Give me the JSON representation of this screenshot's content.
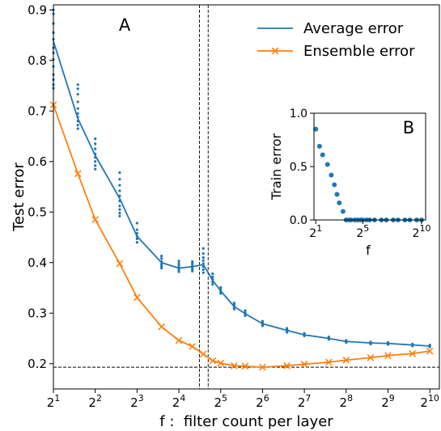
{
  "chart_data": [
    {
      "panel": "A",
      "type": "line",
      "xlabel": "f :  filter count per layer",
      "ylabel": "Test error",
      "x_scale": "log2",
      "xlim": [
        2,
        1200
      ],
      "ylim": [
        0.15,
        0.91
      ],
      "x_ticks": [
        {
          "value": 2,
          "base": "2",
          "exp": "1"
        },
        {
          "value": 4,
          "base": "2",
          "exp": "2"
        },
        {
          "value": 8,
          "base": "2",
          "exp": "3"
        },
        {
          "value": 16,
          "base": "2",
          "exp": "4"
        },
        {
          "value": 32,
          "base": "2",
          "exp": "5"
        },
        {
          "value": 64,
          "base": "2",
          "exp": "6"
        },
        {
          "value": 128,
          "base": "2",
          "exp": "7"
        },
        {
          "value": 256,
          "base": "2",
          "exp": "8"
        },
        {
          "value": 512,
          "base": "2",
          "exp": "9"
        },
        {
          "value": 1024,
          "base": "2",
          "exp": "10"
        }
      ],
      "y_ticks": [
        "0.2",
        "0.3",
        "0.4",
        "0.5",
        "0.6",
        "0.7",
        "0.8",
        "0.9"
      ],
      "reference_lines": {
        "vertical_x": [
          22.5,
          26
        ],
        "horizontal_y": [
          0.193
        ]
      },
      "x": [
        2,
        3,
        4,
        6,
        8,
        12,
        16,
        20,
        24,
        28,
        32,
        40,
        48,
        64,
        96,
        128,
        192,
        256,
        384,
        512,
        768,
        1024
      ],
      "series": [
        {
          "name": "Average error",
          "color": "#1f77b4",
          "marker": "none",
          "values": [
            0.838,
            0.685,
            0.612,
            0.527,
            0.452,
            0.4,
            0.389,
            0.392,
            0.396,
            0.365,
            0.344,
            0.313,
            0.299,
            0.279,
            0.266,
            0.257,
            0.25,
            0.244,
            0.241,
            0.24,
            0.237,
            0.235
          ]
        },
        {
          "name": "Ensemble error",
          "color": "#ff7f0e",
          "marker": "x",
          "values": [
            0.712,
            0.576,
            0.485,
            0.398,
            0.331,
            0.273,
            0.246,
            0.234,
            0.219,
            0.206,
            0.201,
            0.196,
            0.195,
            0.193,
            0.196,
            0.199,
            0.203,
            0.207,
            0.212,
            0.216,
            0.22,
            0.225
          ]
        }
      ],
      "individual_runs": {
        "color": "#1f77b4",
        "groups": [
          {
            "x": 2,
            "values": [
              0.9,
              0.892,
              0.873,
              0.855,
              0.842,
              0.825,
              0.815,
              0.802,
              0.788,
              0.772,
              0.762,
              0.752,
              0.745
            ]
          },
          {
            "x": 3,
            "values": [
              0.752,
              0.744,
              0.733,
              0.718,
              0.705,
              0.695,
              0.688,
              0.68,
              0.672,
              0.665
            ]
          },
          {
            "x": 4,
            "values": [
              0.645,
              0.635,
              0.625,
              0.615,
              0.608,
              0.6,
              0.592,
              0.585
            ]
          },
          {
            "x": 6,
            "values": [
              0.578,
              0.565,
              0.553,
              0.542,
              0.532,
              0.522,
              0.512,
              0.505,
              0.498,
              0.492
            ]
          },
          {
            "x": 8,
            "values": [
              0.478,
              0.465,
              0.458,
              0.452,
              0.447,
              0.44
            ]
          },
          {
            "x": 12,
            "values": [
              0.413,
              0.408,
              0.402,
              0.397,
              0.393,
              0.389
            ]
          },
          {
            "x": 16,
            "values": [
              0.403,
              0.398,
              0.394,
              0.39,
              0.386,
              0.382
            ]
          },
          {
            "x": 20,
            "values": [
              0.402,
              0.398,
              0.394,
              0.39,
              0.386,
              0.383
            ]
          },
          {
            "x": 24,
            "values": [
              0.428,
              0.418,
              0.41,
              0.404,
              0.398,
              0.392,
              0.386,
              0.38
            ]
          },
          {
            "x": 28,
            "values": [
              0.378,
              0.372,
              0.367,
              0.362,
              0.357
            ]
          },
          {
            "x": 32,
            "values": [
              0.351,
              0.347,
              0.343,
              0.339
            ]
          },
          {
            "x": 40,
            "values": [
              0.32,
              0.316,
              0.312,
              0.308
            ]
          },
          {
            "x": 48,
            "values": [
              0.305,
              0.301,
              0.298,
              0.295
            ]
          },
          {
            "x": 64,
            "values": [
              0.284,
              0.281,
              0.278,
              0.275
            ]
          },
          {
            "x": 96,
            "values": [
              0.27,
              0.267,
              0.264,
              0.262
            ]
          },
          {
            "x": 128,
            "values": [
              0.26,
              0.257,
              0.255
            ]
          },
          {
            "x": 192,
            "values": [
              0.253,
              0.25,
              0.248
            ]
          },
          {
            "x": 256,
            "values": [
              0.246,
              0.244,
              0.242
            ]
          },
          {
            "x": 384,
            "values": [
              0.243,
              0.241,
              0.239
            ]
          },
          {
            "x": 512,
            "values": [
              0.242,
              0.24,
              0.238
            ]
          },
          {
            "x": 768,
            "values": [
              0.239,
              0.237,
              0.235
            ]
          },
          {
            "x": 1024,
            "values": [
              0.237,
              0.235,
              0.233
            ]
          }
        ]
      },
      "legend": {
        "position": "top-right",
        "entries": [
          "Average error",
          "Ensemble error"
        ]
      }
    },
    {
      "panel": "B",
      "type": "scatter",
      "xlabel": "f",
      "ylabel": "Train error",
      "x_scale": "log2",
      "xlim": [
        1.8,
        1300
      ],
      "ylim": [
        0.0,
        1.0
      ],
      "x_ticks": [
        {
          "value": 2,
          "base": "2",
          "exp": "1"
        },
        {
          "value": 32,
          "base": "2",
          "exp": "5"
        },
        {
          "value": 1024,
          "base": "2",
          "exp": "10"
        }
      ],
      "y_ticks": [
        "0.0",
        "0.5",
        "1.0"
      ],
      "color": "#1f77b4",
      "points": [
        {
          "x": 2,
          "y": 0.85
        },
        {
          "x": 2.5,
          "y": 0.69
        },
        {
          "x": 3,
          "y": 0.61
        },
        {
          "x": 4,
          "y": 0.52
        },
        {
          "x": 5,
          "y": 0.42
        },
        {
          "x": 6,
          "y": 0.33
        },
        {
          "x": 7,
          "y": 0.24
        },
        {
          "x": 8,
          "y": 0.16
        },
        {
          "x": 10,
          "y": 0.08
        },
        {
          "x": 12,
          "y": 0.0
        },
        {
          "x": 14,
          "y": 0.0
        },
        {
          "x": 16,
          "y": 0.0
        },
        {
          "x": 20,
          "y": 0.0
        },
        {
          "x": 24,
          "y": 0.0
        },
        {
          "x": 28,
          "y": 0.0
        },
        {
          "x": 32,
          "y": 0.0
        },
        {
          "x": 40,
          "y": 0.0
        },
        {
          "x": 48,
          "y": 0.0
        },
        {
          "x": 64,
          "y": 0.0
        },
        {
          "x": 96,
          "y": 0.0
        },
        {
          "x": 128,
          "y": 0.0
        },
        {
          "x": 192,
          "y": 0.0
        },
        {
          "x": 256,
          "y": 0.0
        },
        {
          "x": 384,
          "y": 0.0
        },
        {
          "x": 512,
          "y": 0.0
        },
        {
          "x": 768,
          "y": 0.0
        },
        {
          "x": 1024,
          "y": 0.0
        }
      ]
    }
  ]
}
